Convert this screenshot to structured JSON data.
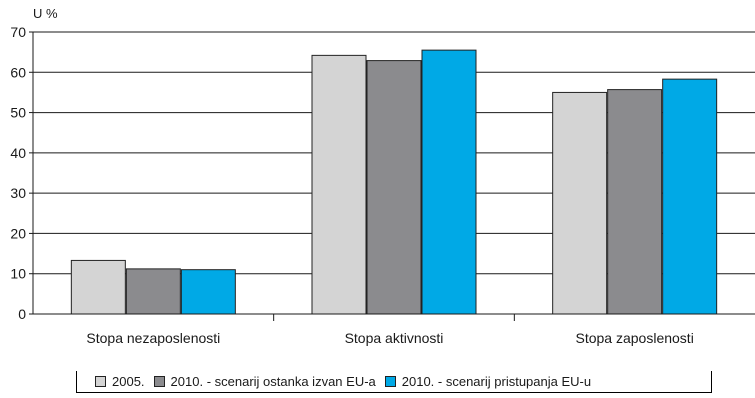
{
  "chart_data": {
    "type": "bar",
    "ylabel": "U %",
    "ylim": [
      0,
      70
    ],
    "yticks": [
      0,
      10,
      20,
      30,
      40,
      50,
      60,
      70
    ],
    "grid": true,
    "categories": [
      "Stopa nezaposlenosti",
      "Stopa aktivnosti",
      "Stopa zaposlenosti"
    ],
    "series": [
      {
        "name": "2005.",
        "color": "#d4d4d4",
        "values": [
          13.3,
          64.2,
          55.0
        ]
      },
      {
        "name": "2010. - scenarij ostanka izvan EU-a",
        "color": "#8b8b8e",
        "values": [
          11.2,
          62.9,
          55.7
        ]
      },
      {
        "name": "2010. - scenarij pristupanja EU-u",
        "color": "#00a9e6",
        "values": [
          11.0,
          65.5,
          58.3
        ]
      }
    ],
    "legend_position": "bottom"
  }
}
